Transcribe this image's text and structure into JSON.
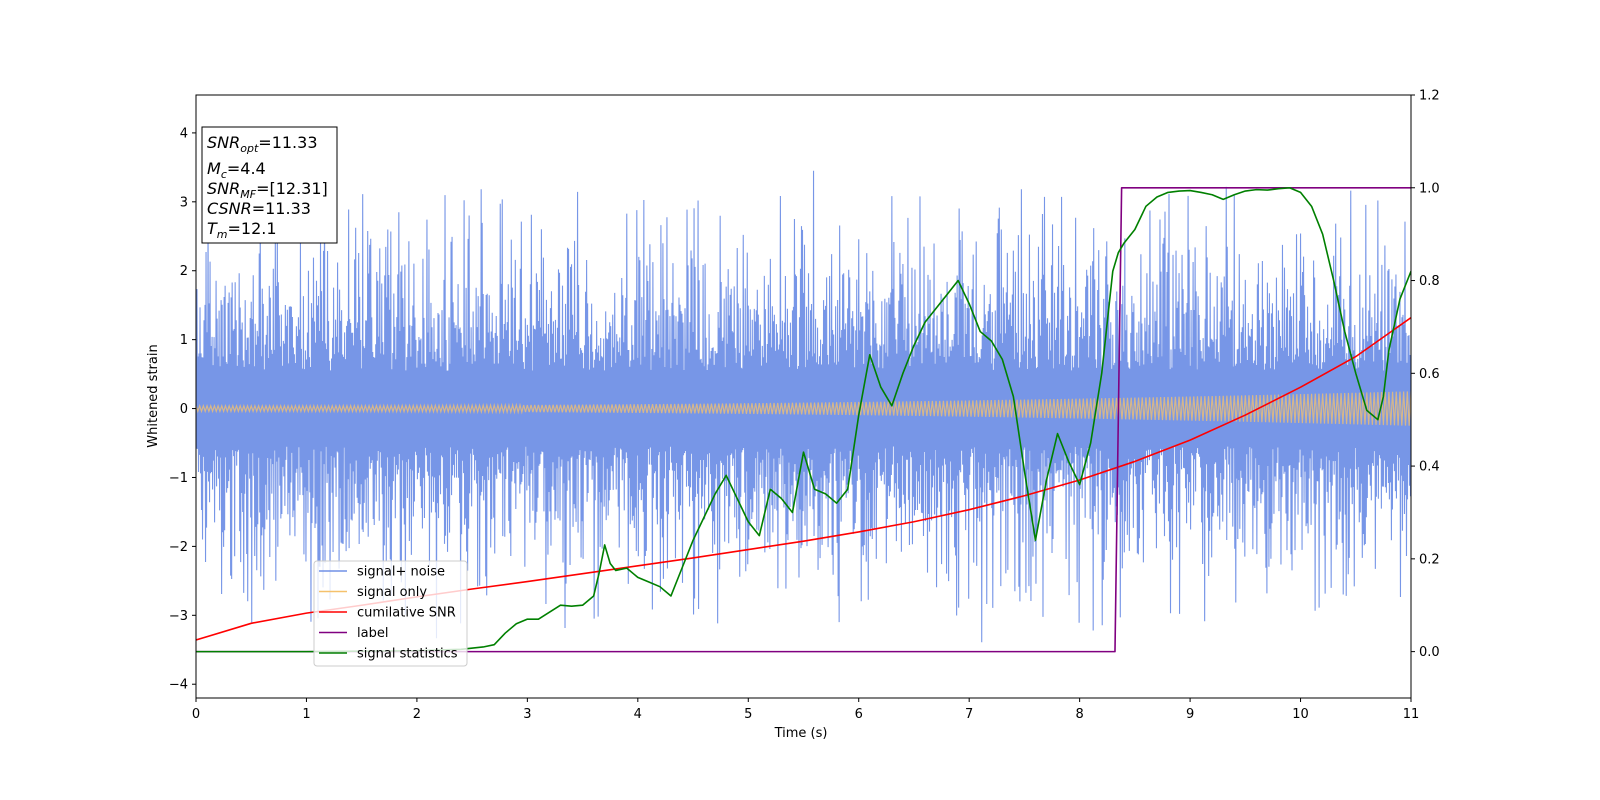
{
  "chart_data": {
    "type": "line",
    "xlabel": "Time (s)",
    "ylabel": "Whitened strain",
    "xlim": [
      0,
      11
    ],
    "ylim": [
      -4.2,
      4.55
    ],
    "y2lim": [
      -0.1,
      1.2
    ],
    "x_ticks": [
      0,
      1,
      2,
      3,
      4,
      5,
      6,
      7,
      8,
      9,
      10,
      11
    ],
    "y_ticks": [
      -4,
      -3,
      -2,
      -1,
      0,
      1,
      2,
      3,
      4
    ],
    "y2_ticks": [
      0.0,
      0.2,
      0.4,
      0.6,
      0.8,
      1.0,
      1.2
    ],
    "x_tick_labels": [
      "0",
      "1",
      "2",
      "3",
      "4",
      "5",
      "6",
      "7",
      "8",
      "9",
      "10",
      "11"
    ],
    "y_tick_labels": [
      "−4",
      "−3",
      "−2",
      "−1",
      "0",
      "1",
      "2",
      "3",
      "4"
    ],
    "y2_tick_labels": [
      "0.0",
      "0.2",
      "0.4",
      "0.6",
      "0.8",
      "1.0",
      "1.2"
    ],
    "grid": false,
    "legend_position": "lower-left",
    "info_box": {
      "position": "top-left",
      "lines": [
        {
          "name": "SNR",
          "sub": "opt",
          "value": "=11.33"
        },
        {
          "name": "M",
          "sub": "c",
          "value": "=4.4"
        },
        {
          "name": "SNR",
          "sub": "MF",
          "value": "=[12.31]"
        },
        {
          "name": "CSNR",
          "sub": "",
          "value": "=11.33"
        },
        {
          "name": "T",
          "sub": "m",
          "value": "=12.1"
        }
      ]
    },
    "series": [
      {
        "name": "signal+ noise",
        "axis": "left",
        "color": "#7090e6",
        "kind": "noise",
        "envelope": {
          "typical_peak": 2.0,
          "max": 3.45,
          "min": -3.8,
          "samples_per_second": 220
        }
      },
      {
        "name": "signal only",
        "axis": "left",
        "color": "#f5c16c",
        "kind": "chirp",
        "amplitude_start": 0.04,
        "amplitude_end": 0.25,
        "cycles_per_second": 30
      },
      {
        "name": "cumilative SNR",
        "axis": "right",
        "color": "#ff0000",
        "x": [
          0,
          0.5,
          1,
          1.5,
          2,
          2.5,
          3,
          3.5,
          4,
          4.5,
          5,
          5.5,
          6,
          6.5,
          7,
          7.5,
          8,
          8.5,
          9,
          9.5,
          10,
          10.5,
          11
        ],
        "y": [
          0.025,
          0.061,
          0.083,
          0.1,
          0.118,
          0.135,
          0.151,
          0.168,
          0.185,
          0.202,
          0.22,
          0.238,
          0.258,
          0.28,
          0.306,
          0.336,
          0.37,
          0.41,
          0.456,
          0.51,
          0.57,
          0.636,
          0.72
        ]
      },
      {
        "name": "label",
        "axis": "right",
        "color": "#800080",
        "x": [
          0,
          8.32,
          8.38,
          11
        ],
        "y": [
          0,
          0,
          1,
          1
        ]
      },
      {
        "name": "signal statistics",
        "axis": "right",
        "color": "#008000",
        "x": [
          0,
          1.0,
          2.0,
          2.4,
          2.6,
          2.7,
          2.8,
          2.9,
          3.0,
          3.1,
          3.2,
          3.3,
          3.4,
          3.5,
          3.6,
          3.65,
          3.7,
          3.75,
          3.8,
          3.9,
          4.0,
          4.1,
          4.2,
          4.3,
          4.4,
          4.5,
          4.6,
          4.7,
          4.8,
          4.9,
          5.0,
          5.1,
          5.2,
          5.3,
          5.4,
          5.5,
          5.6,
          5.7,
          5.8,
          5.9,
          6.0,
          6.1,
          6.2,
          6.3,
          6.4,
          6.5,
          6.6,
          6.7,
          6.8,
          6.9,
          7.0,
          7.1,
          7.2,
          7.3,
          7.4,
          7.5,
          7.6,
          7.7,
          7.8,
          7.9,
          8.0,
          8.1,
          8.2,
          8.3,
          8.35,
          8.4,
          8.5,
          8.6,
          8.7,
          8.8,
          8.9,
          9.0,
          9.1,
          9.2,
          9.3,
          9.4,
          9.5,
          9.6,
          9.7,
          9.8,
          9.9,
          10.0,
          10.1,
          10.2,
          10.3,
          10.4,
          10.5,
          10.6,
          10.7,
          10.75,
          10.8,
          10.9,
          11.0
        ],
        "y": [
          0.0,
          0.0,
          0.002,
          0.005,
          0.01,
          0.015,
          0.04,
          0.06,
          0.07,
          0.07,
          0.085,
          0.1,
          0.098,
          0.1,
          0.12,
          0.17,
          0.23,
          0.19,
          0.175,
          0.18,
          0.16,
          0.15,
          0.14,
          0.12,
          0.18,
          0.24,
          0.29,
          0.34,
          0.38,
          0.33,
          0.28,
          0.25,
          0.35,
          0.33,
          0.3,
          0.43,
          0.35,
          0.34,
          0.32,
          0.35,
          0.51,
          0.64,
          0.57,
          0.53,
          0.6,
          0.66,
          0.71,
          0.74,
          0.77,
          0.8,
          0.75,
          0.69,
          0.67,
          0.63,
          0.55,
          0.39,
          0.24,
          0.37,
          0.47,
          0.41,
          0.36,
          0.45,
          0.6,
          0.82,
          0.86,
          0.88,
          0.91,
          0.96,
          0.98,
          0.99,
          0.993,
          0.994,
          0.99,
          0.985,
          0.975,
          0.985,
          0.993,
          0.996,
          0.995,
          0.998,
          1.0,
          0.99,
          0.96,
          0.9,
          0.8,
          0.69,
          0.6,
          0.52,
          0.5,
          0.55,
          0.65,
          0.76,
          0.82
        ]
      }
    ]
  }
}
